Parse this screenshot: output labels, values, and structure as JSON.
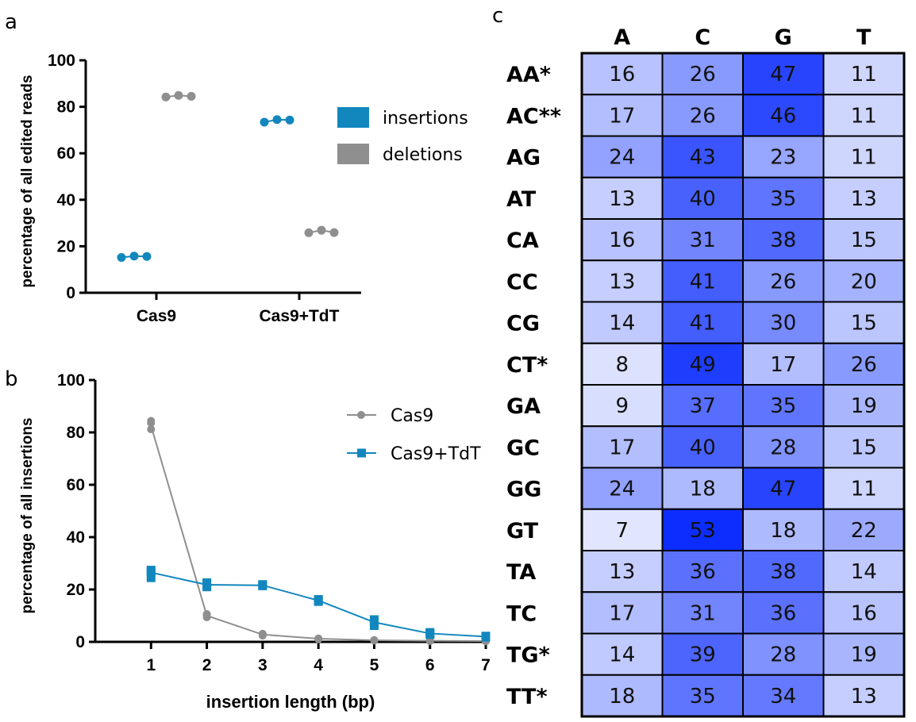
{
  "panel_letters": {
    "a": "a",
    "b": "b",
    "c": "c"
  },
  "chart_data": [
    {
      "type": "scatter",
      "panel": "a",
      "ylabel": "percentage of all edited reads",
      "ylim": [
        0,
        100
      ],
      "yticks": [
        0,
        20,
        40,
        60,
        80,
        100
      ],
      "categories": [
        "Cas9",
        "Cas9+TdT"
      ],
      "legend_position": "right",
      "series": [
        {
          "name": "insertions",
          "color": "#1287be",
          "values": [
            [
              15.2,
              15.8,
              15.6
            ],
            [
              73.4,
              74.5,
              74.3
            ]
          ]
        },
        {
          "name": "deletions",
          "color": "#8f8f8f",
          "values": [
            [
              84.2,
              84.9,
              84.5
            ],
            [
              25.8,
              26.9,
              25.9
            ]
          ]
        }
      ]
    },
    {
      "type": "line",
      "panel": "b",
      "xlabel": "insertion length (bp)",
      "ylabel": "percentage of all insertions",
      "xlim": [
        0,
        7
      ],
      "ylim": [
        0,
        100
      ],
      "x": [
        1,
        2,
        3,
        4,
        5,
        6,
        7
      ],
      "yticks": [
        0,
        20,
        40,
        60,
        80,
        100
      ],
      "legend_position": "top-right",
      "series": [
        {
          "name": "Cas9",
          "color": "#8f8f8f",
          "marker": "circle",
          "values": [
            82.5,
            10,
            2.8,
            1.2,
            0.6,
            0.4,
            0.3
          ],
          "replicates": [
            [
              81.2,
              83.6,
              84.4
            ],
            [
              9.4,
              10.2,
              10.6
            ],
            [
              2.4,
              2.8,
              3.1
            ],
            [
              1.0,
              1.2,
              1.3
            ],
            [
              0.5,
              0.6,
              0.7
            ],
            [
              0.3,
              0.4,
              0.5
            ],
            [
              0.2,
              0.3,
              0.4
            ]
          ]
        },
        {
          "name": "Cas9+TdT",
          "color": "#1287be",
          "marker": "square",
          "values": [
            26.5,
            21.8,
            21.6,
            15.8,
            7.5,
            3.2,
            2.0
          ],
          "replicates": [
            [
              24.5,
              26.8,
              27.4
            ],
            [
              21.0,
              22.0,
              22.6
            ],
            [
              21.4,
              21.7,
              21.9
            ],
            [
              15.4,
              15.9,
              16.2
            ],
            [
              6.2,
              7.5,
              8.5
            ],
            [
              2.8,
              3.2,
              3.6
            ],
            [
              1.8,
              2.0,
              2.2
            ]
          ]
        }
      ]
    },
    {
      "type": "heatmap",
      "panel": "c",
      "columns": [
        "A",
        "C",
        "G",
        "T"
      ],
      "rows": [
        "AA*",
        "AC**",
        "AG",
        "AT",
        "CA",
        "CC",
        "CG",
        "CT*",
        "GA",
        "GC",
        "GG",
        "GT",
        "TA",
        "TC",
        "TG*",
        "TT*"
      ],
      "values": [
        [
          16,
          26,
          47,
          11
        ],
        [
          17,
          26,
          46,
          11
        ],
        [
          24,
          43,
          23,
          11
        ],
        [
          13,
          40,
          35,
          13
        ],
        [
          16,
          31,
          38,
          15
        ],
        [
          13,
          41,
          26,
          20
        ],
        [
          14,
          41,
          30,
          15
        ],
        [
          8,
          49,
          17,
          26
        ],
        [
          9,
          37,
          35,
          19
        ],
        [
          17,
          40,
          28,
          15
        ],
        [
          24,
          18,
          47,
          11
        ],
        [
          7,
          53,
          18,
          22
        ],
        [
          13,
          36,
          38,
          14
        ],
        [
          17,
          31,
          36,
          16
        ],
        [
          14,
          39,
          28,
          19
        ],
        [
          18,
          35,
          34,
          13
        ]
      ],
      "color_low": "#e1e6fe",
      "color_high": "#0c2dfd"
    }
  ]
}
